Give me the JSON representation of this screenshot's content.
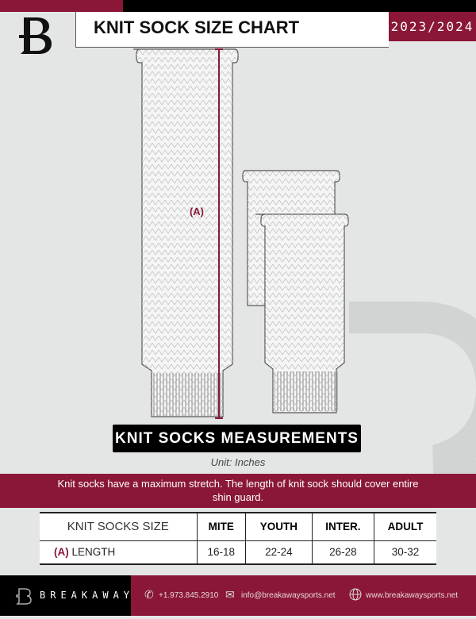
{
  "header": {
    "title": "KNIT SOCK SIZE CHART",
    "season": "2023/2024"
  },
  "diagram": {
    "measure_label": "(A)"
  },
  "banner": "KNIT SOCKS MEASUREMENTS",
  "unit": "Unit: Inches",
  "note": "Knit socks have a maximum stretch. The length of knit sock should cover entire shin guard.",
  "table": {
    "header": [
      "KNIT SOCKS SIZE",
      "MITE",
      "YOUTH",
      "INTER.",
      "ADULT"
    ],
    "row": {
      "marker": "(A)",
      "label": "LENGTH",
      "values": [
        "16-18",
        "22-24",
        "26-28",
        "30-32"
      ]
    }
  },
  "footer": {
    "brand": "BREAKAWAY",
    "phone": "+1.973.845.2910",
    "email": "info@breakawaysports.net",
    "website": "www.breakawaysports.net"
  },
  "colors": {
    "accent": "#8a1737",
    "dark": "#000000",
    "background": "#e4e6e5"
  }
}
